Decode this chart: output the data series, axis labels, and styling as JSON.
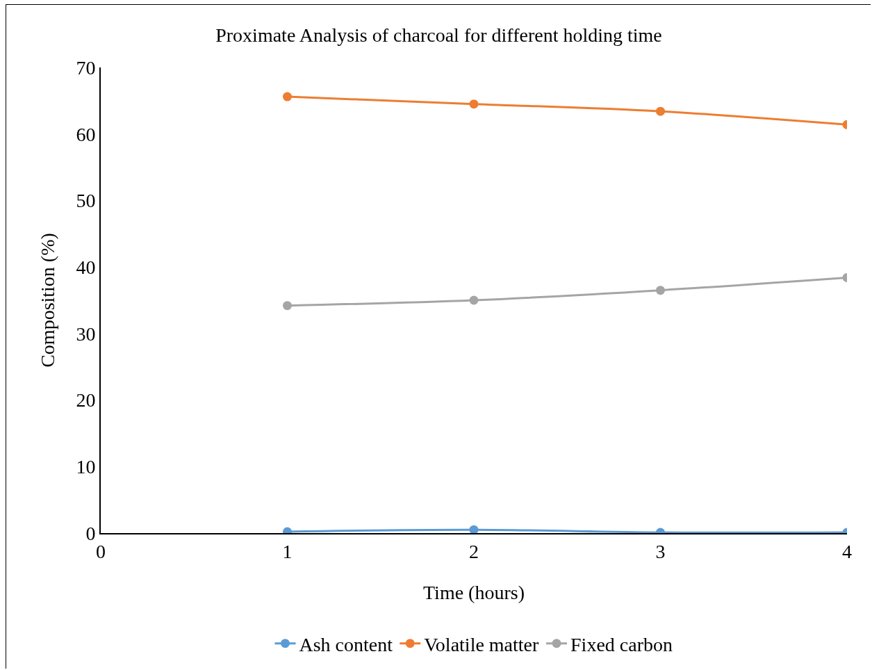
{
  "chart_data": {
    "type": "line",
    "title": "Proximate Analysis of charcoal for different holding time",
    "xlabel": "Time (hours)",
    "ylabel": "Composition (%)",
    "x": [
      1,
      2,
      3,
      4
    ],
    "series": [
      {
        "name": "Ash content",
        "color": "#5b9bd5",
        "values": [
          0.2,
          0.5,
          0.1,
          0.1
        ]
      },
      {
        "name": "Volatile matter",
        "color": "#ed7d31",
        "values": [
          65.6,
          64.5,
          63.4,
          61.4
        ]
      },
      {
        "name": "Fixed carbon",
        "color": "#a5a5a5",
        "values": [
          34.2,
          35.0,
          36.5,
          38.4
        ]
      }
    ],
    "xlim": [
      0,
      4
    ],
    "xticks": [
      0,
      1,
      2,
      3,
      4
    ],
    "ylim": [
      0,
      70
    ],
    "yticks": [
      0,
      10,
      20,
      30,
      40,
      50,
      60,
      70
    ],
    "grid": false,
    "legend": "bottom",
    "marker": "circle",
    "line_style": "solid"
  }
}
